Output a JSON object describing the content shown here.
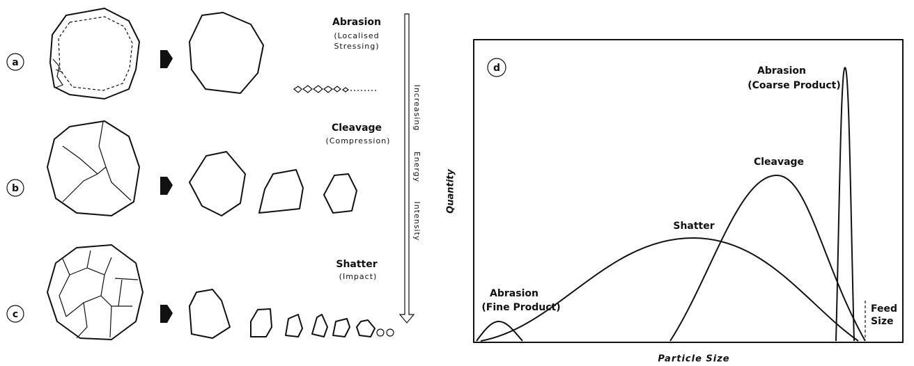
{
  "rows": [
    {
      "label": "a",
      "mode": "Abrasion",
      "stress": [
        "(Localised",
        "Stressing)"
      ]
    },
    {
      "label": "b",
      "mode": "Cleavage",
      "stress": [
        "(Compression)"
      ]
    },
    {
      "label": "c",
      "mode": "Shatter",
      "stress": [
        "(Impact)"
      ]
    }
  ],
  "arrow_label": [
    "Increasing",
    "Energy",
    "Intensity"
  ],
  "plot": {
    "label": "d",
    "y_axis": "Quantity",
    "x_axis": "Particle Size",
    "curves": [
      {
        "name": "Abrasion",
        "note": "(Coarse Product)"
      },
      {
        "name": "Cleavage"
      },
      {
        "name": "Shatter"
      },
      {
        "name": "Abrasion",
        "note": "(Fine Product)"
      }
    ],
    "feed": [
      "Feed",
      "Size"
    ]
  }
}
